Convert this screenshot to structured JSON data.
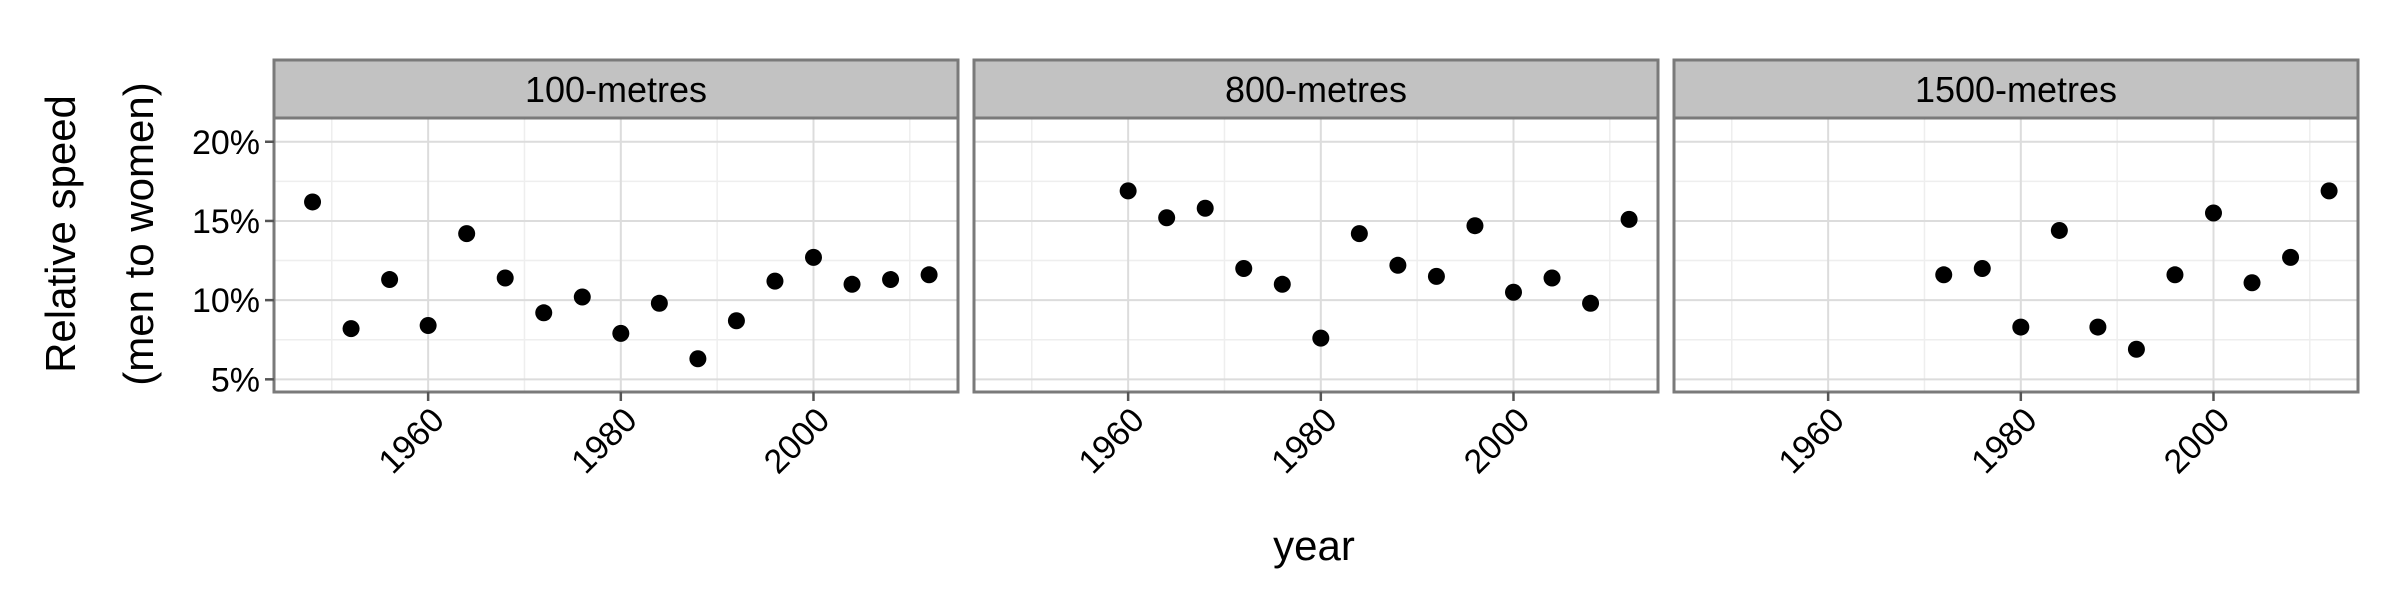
{
  "chart_data": {
    "type": "scatter",
    "xlabel": "year",
    "ylabel_lines": [
      "Relative speed",
      "(men to women)"
    ],
    "xlim": [
      1944,
      2015
    ],
    "ylim": [
      4.2,
      21.5
    ],
    "x_ticks": [
      1960,
      1980,
      2000
    ],
    "y_ticks": [
      {
        "value": 5,
        "label": "5%"
      },
      {
        "value": 10,
        "label": "10%"
      },
      {
        "value": 15,
        "label": "15%"
      },
      {
        "value": 20,
        "label": "20%"
      }
    ],
    "grid": true,
    "colors": {
      "point": "#000000",
      "strip_bg": "#c2c2c2",
      "strip_border": "#7a7a7a",
      "panel_border": "#7a7a7a",
      "grid_major": "#dcdcdc",
      "grid_minor": "#eeeeee"
    },
    "panels": [
      {
        "title": "100-metres",
        "points": [
          {
            "x": 1948,
            "y": 16.2
          },
          {
            "x": 1952,
            "y": 8.2
          },
          {
            "x": 1956,
            "y": 11.3
          },
          {
            "x": 1960,
            "y": 8.4
          },
          {
            "x": 1964,
            "y": 14.2
          },
          {
            "x": 1968,
            "y": 11.4
          },
          {
            "x": 1972,
            "y": 9.2
          },
          {
            "x": 1976,
            "y": 10.2
          },
          {
            "x": 1980,
            "y": 7.9
          },
          {
            "x": 1984,
            "y": 9.8
          },
          {
            "x": 1988,
            "y": 6.3
          },
          {
            "x": 1992,
            "y": 8.7
          },
          {
            "x": 1996,
            "y": 11.2
          },
          {
            "x": 2000,
            "y": 12.7
          },
          {
            "x": 2004,
            "y": 11.0
          },
          {
            "x": 2008,
            "y": 11.3
          },
          {
            "x": 2012,
            "y": 11.6
          }
        ]
      },
      {
        "title": "800-metres",
        "points": [
          {
            "x": 1960,
            "y": 16.9
          },
          {
            "x": 1964,
            "y": 15.2
          },
          {
            "x": 1968,
            "y": 15.8
          },
          {
            "x": 1972,
            "y": 12.0
          },
          {
            "x": 1976,
            "y": 11.0
          },
          {
            "x": 1980,
            "y": 7.6
          },
          {
            "x": 1984,
            "y": 14.2
          },
          {
            "x": 1988,
            "y": 12.2
          },
          {
            "x": 1992,
            "y": 11.5
          },
          {
            "x": 1996,
            "y": 14.7
          },
          {
            "x": 2000,
            "y": 10.5
          },
          {
            "x": 2004,
            "y": 11.4
          },
          {
            "x": 2008,
            "y": 9.8
          },
          {
            "x": 2012,
            "y": 15.1
          }
        ]
      },
      {
        "title": "1500-metres",
        "points": [
          {
            "x": 1972,
            "y": 11.6
          },
          {
            "x": 1976,
            "y": 12.0
          },
          {
            "x": 1980,
            "y": 8.3
          },
          {
            "x": 1984,
            "y": 14.4
          },
          {
            "x": 1988,
            "y": 8.3
          },
          {
            "x": 1992,
            "y": 6.9
          },
          {
            "x": 1996,
            "y": 11.6
          },
          {
            "x": 2000,
            "y": 15.5
          },
          {
            "x": 2004,
            "y": 11.1
          },
          {
            "x": 2008,
            "y": 12.7
          },
          {
            "x": 2012,
            "y": 16.9
          }
        ]
      }
    ]
  }
}
